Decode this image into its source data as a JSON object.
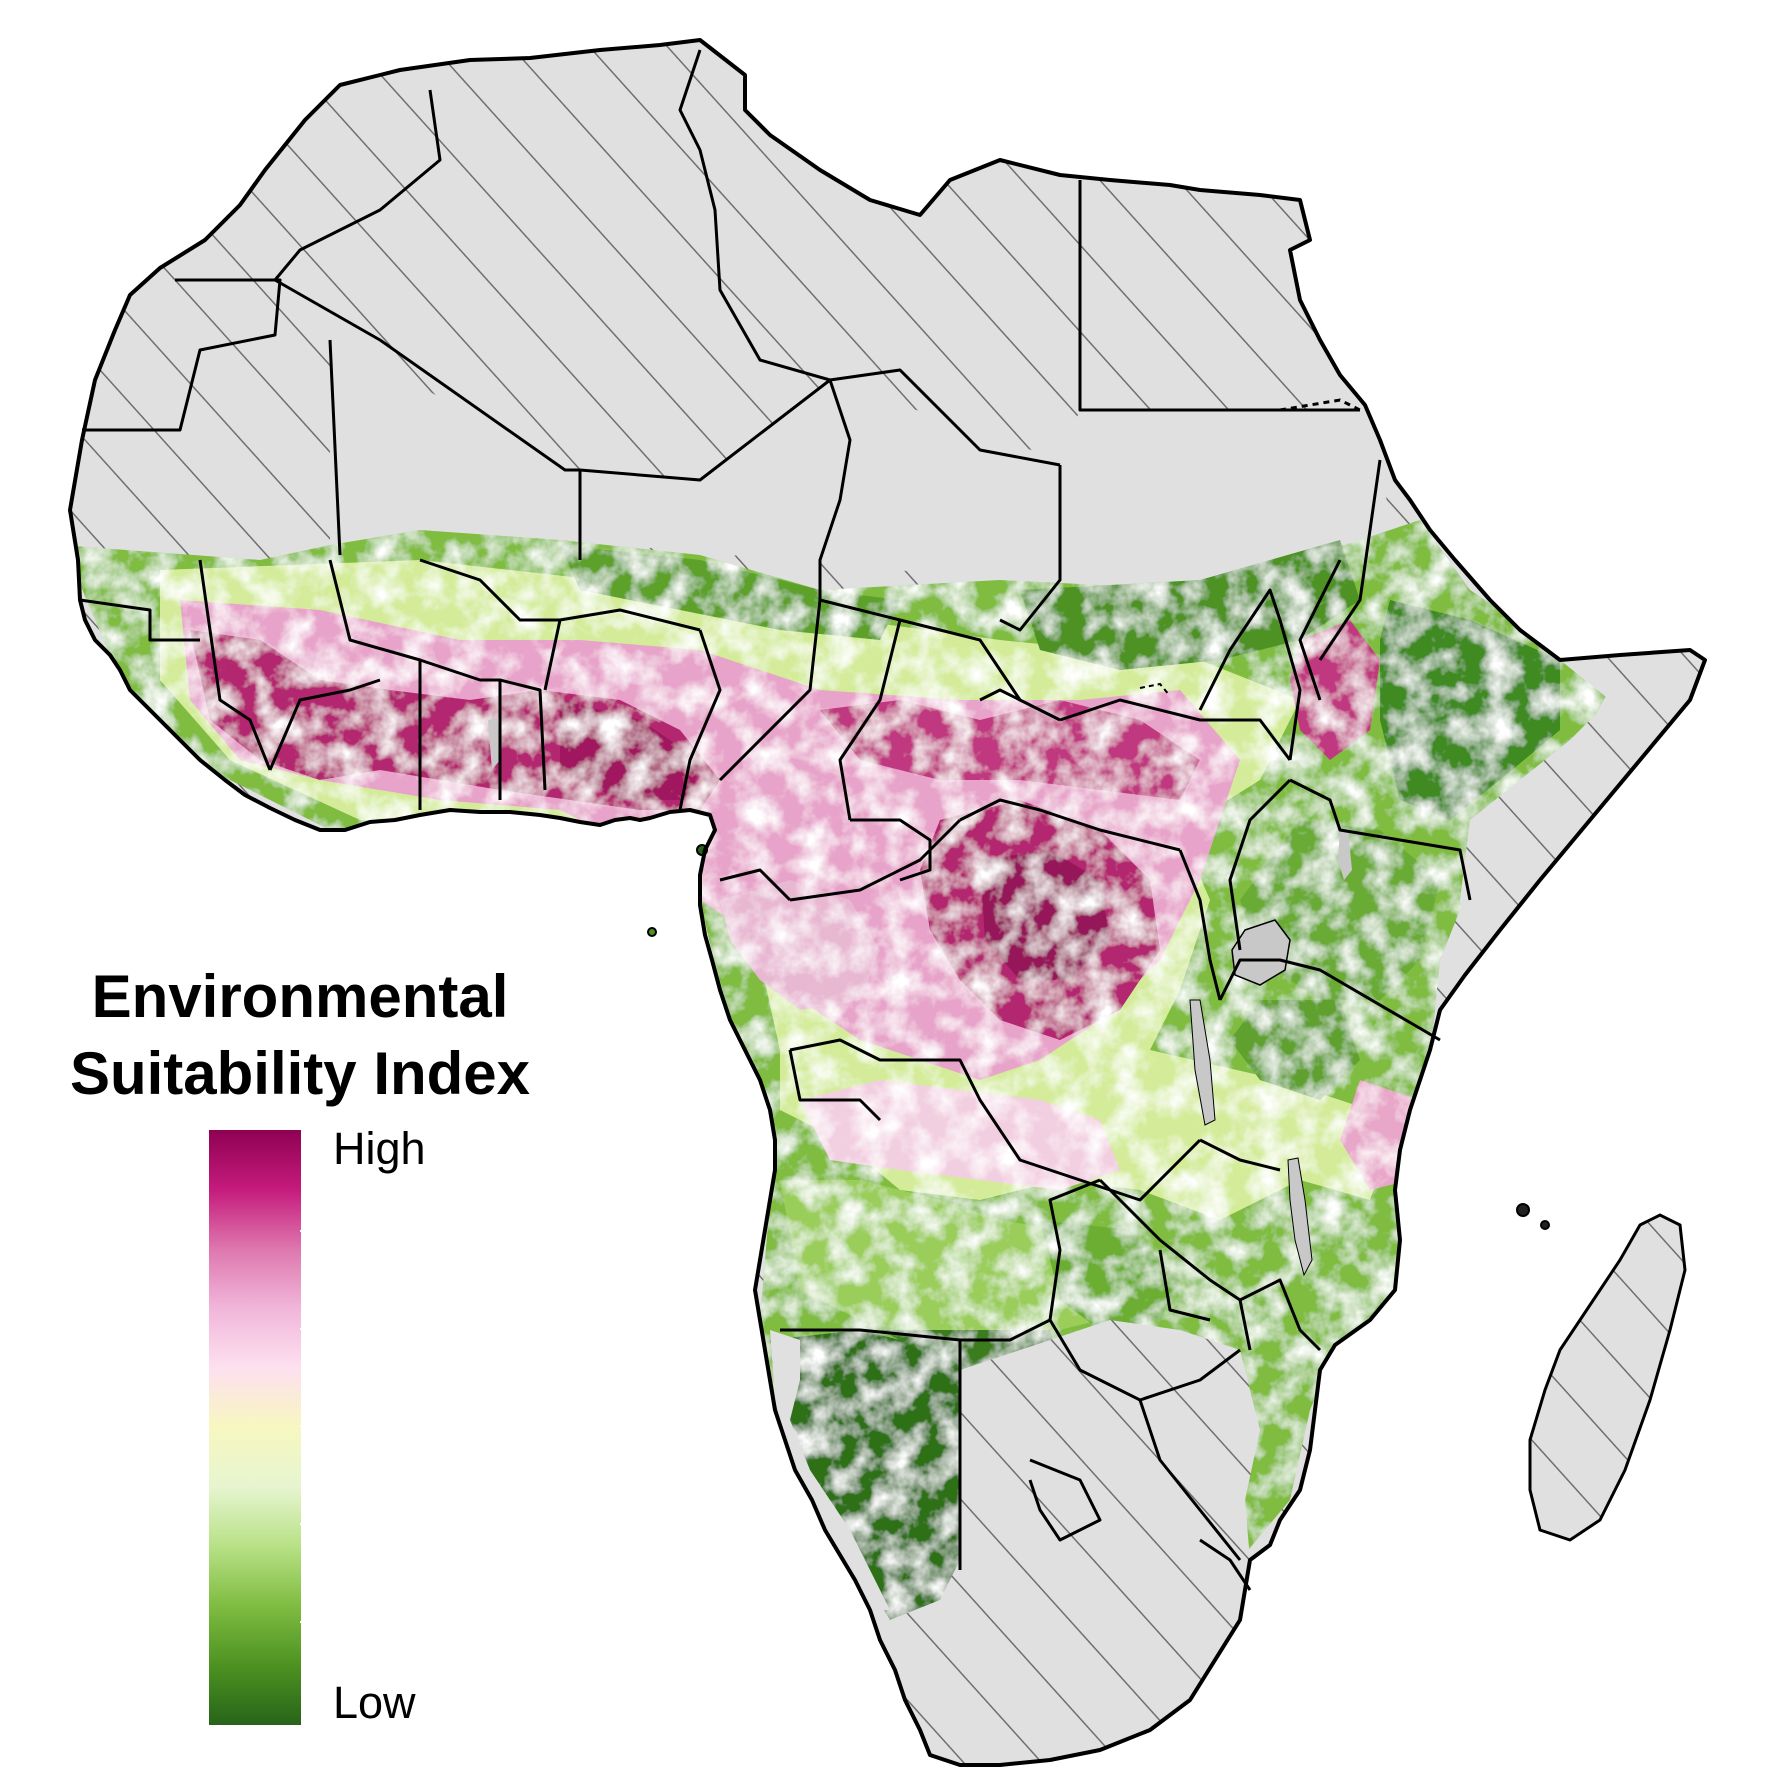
{
  "legend": {
    "title_line1": "Environmental",
    "title_line2": "Suitability Index",
    "high_label": "High",
    "low_label": "Low",
    "gradient_colors": [
      "#8e0152",
      "#c51b7d",
      "#de77ae",
      "#f1b6da",
      "#fde0ef",
      "#f7f7c0",
      "#e6f5d0",
      "#b8e186",
      "#7fbc41",
      "#4d9221",
      "#276419"
    ]
  },
  "map": {
    "land_no_data_color": "#e0e0e0",
    "hatch_color": "#707070",
    "border_color": "#000000",
    "water_color": "#c8c8c8"
  }
}
